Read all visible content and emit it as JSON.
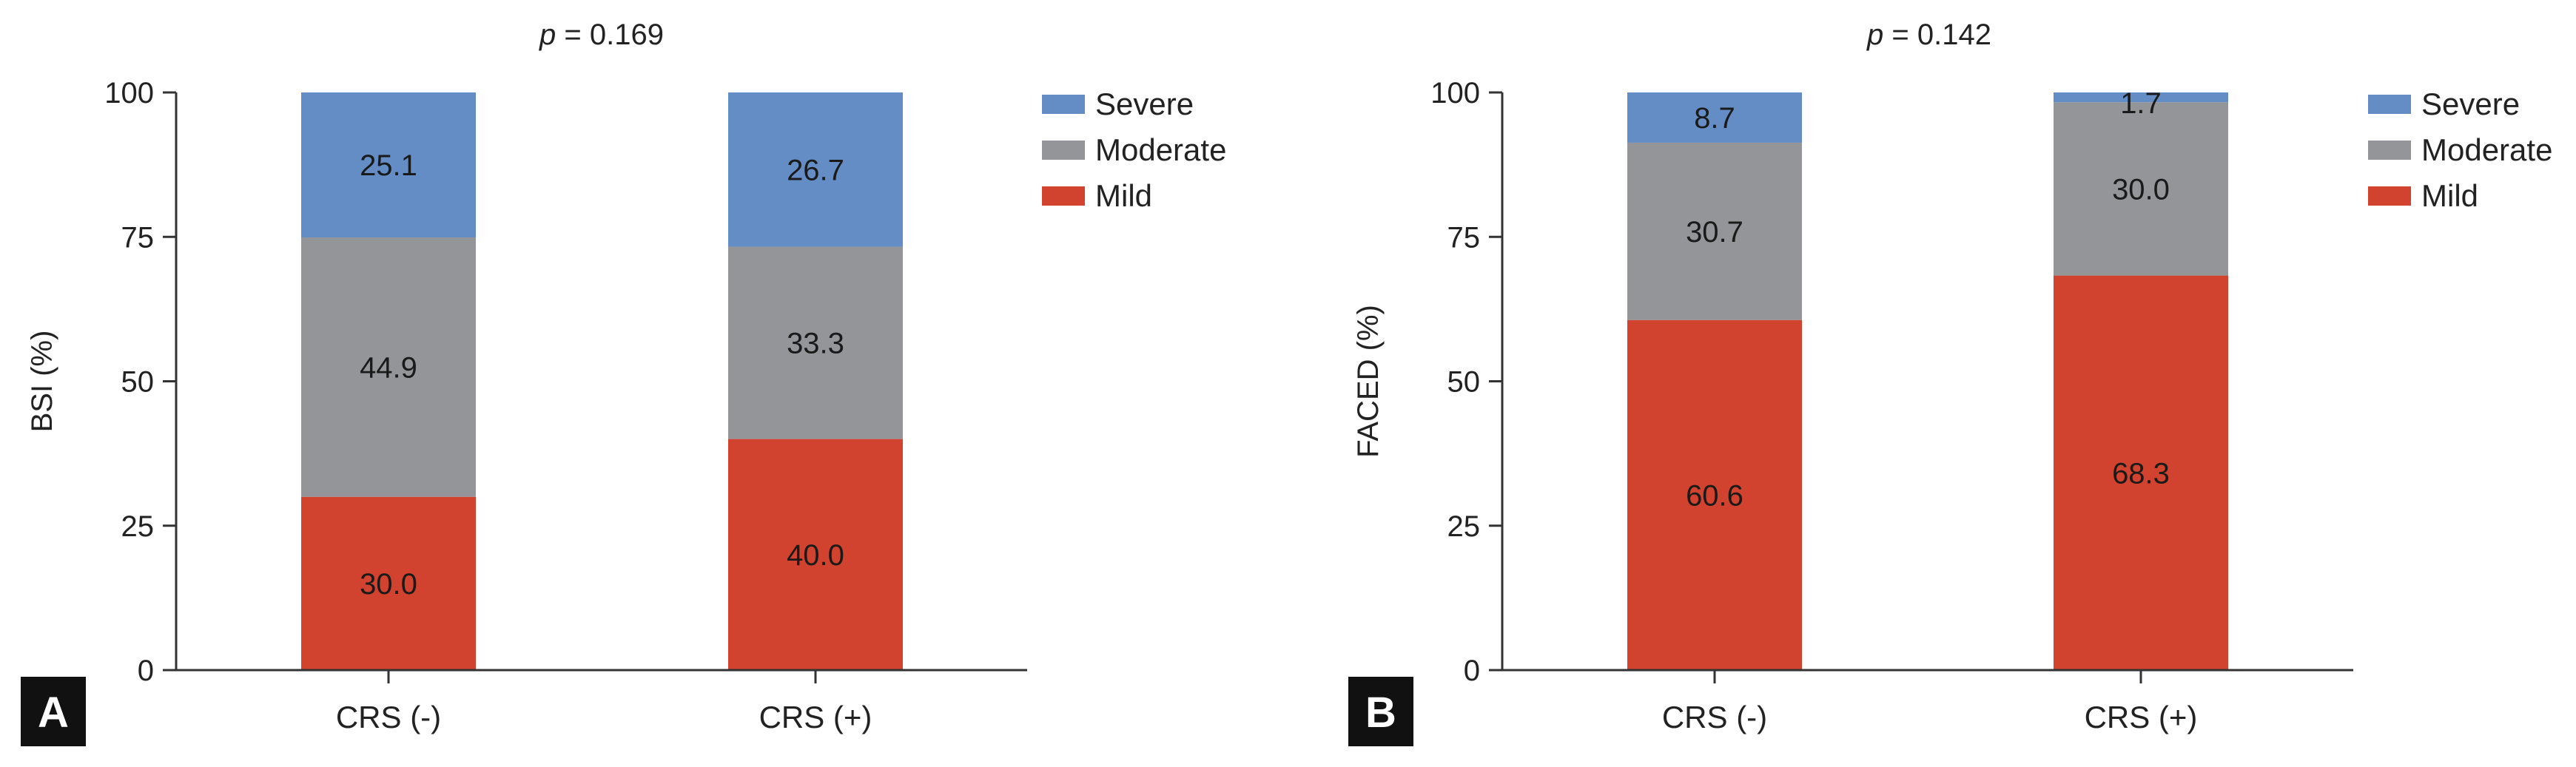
{
  "chart_data": [
    {
      "type": "bar",
      "stacked": true,
      "panel_label": "A",
      "title": "= 0.169",
      "title_italic_prefix": "p",
      "ylabel": "BSI (%)",
      "xlabel": "",
      "ylim": [
        0,
        100
      ],
      "yticks": [
        "0",
        "25",
        "50",
        "75",
        "100"
      ],
      "categories": [
        "CRS (-)",
        "CRS (+)"
      ],
      "series": [
        {
          "name": "Mild",
          "color": "#d1432f",
          "values": [
            30.0,
            40.0
          ],
          "labels": [
            "30.0",
            "40.0"
          ]
        },
        {
          "name": "Moderate",
          "color": "#939598",
          "values": [
            44.9,
            33.3
          ],
          "labels": [
            "44.9",
            "33.3"
          ]
        },
        {
          "name": "Severe",
          "color": "#648dc6",
          "values": [
            25.1,
            26.7
          ],
          "labels": [
            "25.1",
            "26.7"
          ]
        }
      ],
      "legend": {
        "position": "top-right",
        "order": [
          "Severe",
          "Moderate",
          "Mild"
        ]
      }
    },
    {
      "type": "bar",
      "stacked": true,
      "panel_label": "B",
      "title": "= 0.142",
      "title_italic_prefix": "p",
      "ylabel": "FACED (%)",
      "xlabel": "",
      "ylim": [
        0,
        100
      ],
      "yticks": [
        "0",
        "25",
        "50",
        "75",
        "100"
      ],
      "categories": [
        "CRS (-)",
        "CRS (+)"
      ],
      "series": [
        {
          "name": "Mild",
          "color": "#d1432f",
          "values": [
            60.6,
            68.3
          ],
          "labels": [
            "60.6",
            "68.3"
          ]
        },
        {
          "name": "Moderate",
          "color": "#939598",
          "values": [
            30.7,
            30.0
          ],
          "labels": [
            "30.7",
            "30.0"
          ]
        },
        {
          "name": "Severe",
          "color": "#648dc6",
          "values": [
            8.7,
            1.7
          ],
          "labels": [
            "8.7",
            "1.7"
          ]
        }
      ],
      "legend": {
        "position": "top-right",
        "order": [
          "Severe",
          "Moderate",
          "Mild"
        ]
      }
    }
  ]
}
